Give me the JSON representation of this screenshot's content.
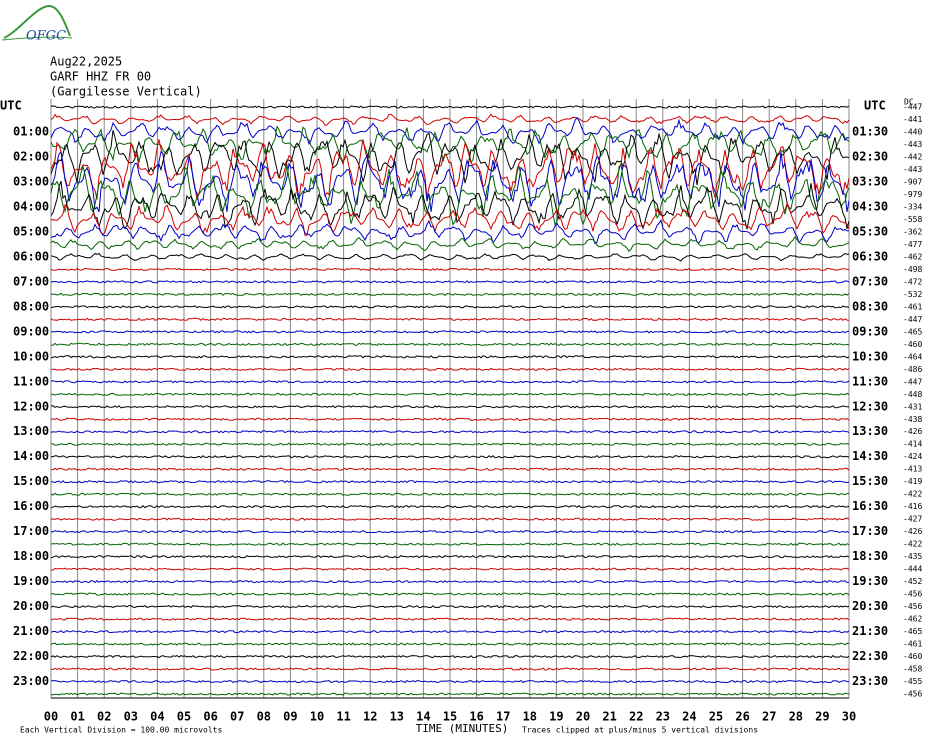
{
  "header": {
    "logo": "OFGC",
    "date": "Aug22,2025",
    "station": "GARF HHZ FR 00",
    "location": "(Gargilesse Vertical)"
  },
  "utc_left": "UTC",
  "utc_right": "UTC",
  "dc_header": "DC",
  "left_times": [
    "01:00",
    "02:00",
    "03:00",
    "04:00",
    "05:00",
    "06:00",
    "07:00",
    "08:00",
    "09:00",
    "10:00",
    "11:00",
    "12:00",
    "13:00",
    "14:00",
    "15:00",
    "16:00",
    "17:00",
    "18:00",
    "19:00",
    "20:00",
    "21:00",
    "22:00",
    "23:00"
  ],
  "right_times": [
    "01:30",
    "02:30",
    "03:30",
    "04:30",
    "05:30",
    "06:30",
    "07:30",
    "08:30",
    "09:30",
    "10:30",
    "11:30",
    "12:30",
    "13:30",
    "14:30",
    "15:30",
    "16:30",
    "17:30",
    "18:30",
    "19:30",
    "20:30",
    "21:30",
    "22:30",
    "23:30"
  ],
  "dc_values": [
    -447,
    -441,
    -440,
    -443,
    -442,
    -443,
    -907,
    -979,
    -334,
    -558,
    -362,
    -477,
    -462,
    -498,
    -472,
    -532,
    -461,
    -447,
    -465,
    -460,
    -464,
    -486,
    -447,
    -448,
    -431,
    -438,
    -426,
    -414,
    -424,
    -413,
    -419,
    -422,
    -416,
    -427,
    -426,
    -422,
    -435,
    -444,
    -452,
    -456,
    -456,
    -462,
    -465,
    -461,
    -460,
    -458,
    -455,
    -456
  ],
  "trace_colors": [
    "#000000",
    "#d00000",
    "#0000c8",
    "#006400"
  ],
  "x_axis": {
    "ticks": [
      {
        "value": 0,
        "label": "00"
      },
      {
        "value": 1,
        "label": "01"
      },
      {
        "value": 2,
        "label": "02"
      },
      {
        "value": 3,
        "label": "03"
      },
      {
        "value": 4,
        "label": "04"
      },
      {
        "value": 5,
        "label": "05"
      },
      {
        "value": 6,
        "label": "06"
      },
      {
        "value": 7,
        "label": "07"
      },
      {
        "value": 8,
        "label": "08"
      },
      {
        "value": 9,
        "label": "09"
      },
      10,
      11,
      12,
      13,
      14,
      15,
      16,
      17,
      18,
      19,
      20,
      21,
      22,
      23,
      24,
      25,
      26,
      27,
      28,
      29,
      30
    ],
    "label": "TIME (MINUTES)"
  },
  "footer": {
    "scale": "Each Vertical Division =  100.00 microvolts",
    "clip": "Traces clipped at plus/minus 5 vertical divisions"
  }
}
